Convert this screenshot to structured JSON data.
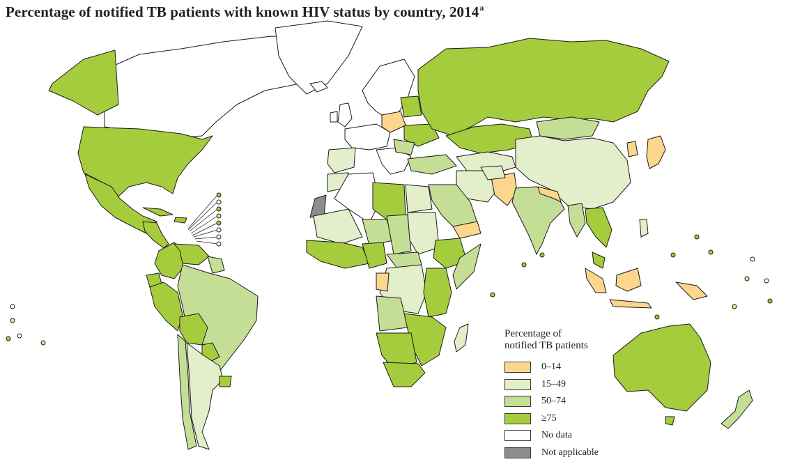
{
  "title": "Percentage of notified TB patients with known HIV status by country, 2014",
  "title_footnote": "a",
  "legend": {
    "title_line1": "Percentage of",
    "title_line2": "notified TB patients",
    "items": [
      {
        "label": "0–14",
        "color": "#fcd68c"
      },
      {
        "label": "15–49",
        "color": "#e2efca"
      },
      {
        "label": "50–74",
        "color": "#c5de96"
      },
      {
        "label": "≥75",
        "color": "#a5cc3c"
      },
      {
        "label": "No data",
        "color": "#ffffff"
      },
      {
        "label": "Not applicable",
        "color": "#8c8c8c"
      }
    ]
  }
}
